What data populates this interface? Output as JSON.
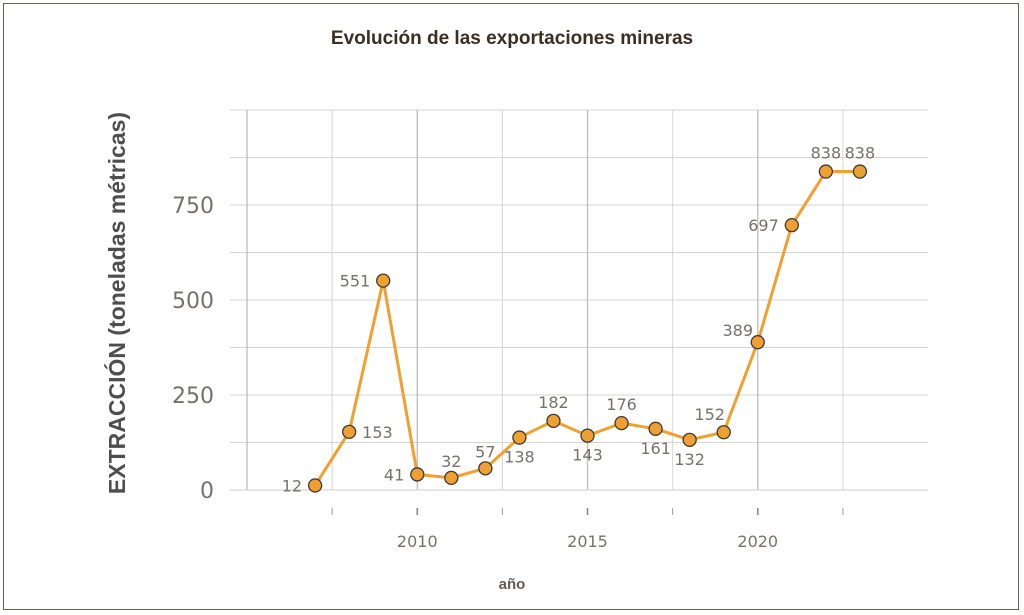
{
  "chart_data": {
    "type": "line",
    "title": "Evolución de las exportaciones mineras",
    "xlabel": "año",
    "ylabel": "EXTRACCIÓN (toneladas métricas)",
    "x": [
      2007,
      2008,
      2009,
      2010,
      2011,
      2012,
      2013,
      2014,
      2015,
      2016,
      2017,
      2018,
      2019,
      2020,
      2021,
      2022,
      2023
    ],
    "values": [
      12,
      153,
      551,
      41,
      32,
      57,
      138,
      182,
      143,
      176,
      161,
      132,
      152,
      389,
      697,
      838,
      838
    ],
    "x_ticks": [
      "2010",
      "2015",
      "2020"
    ],
    "y_ticks": [
      "0",
      "250",
      "500",
      "750"
    ],
    "xlim": [
      2004.5,
      2025
    ],
    "ylim": [
      0,
      1000
    ],
    "grid": true,
    "line_color": "#f0a030",
    "marker_edge_color": "#3a3a3a"
  }
}
